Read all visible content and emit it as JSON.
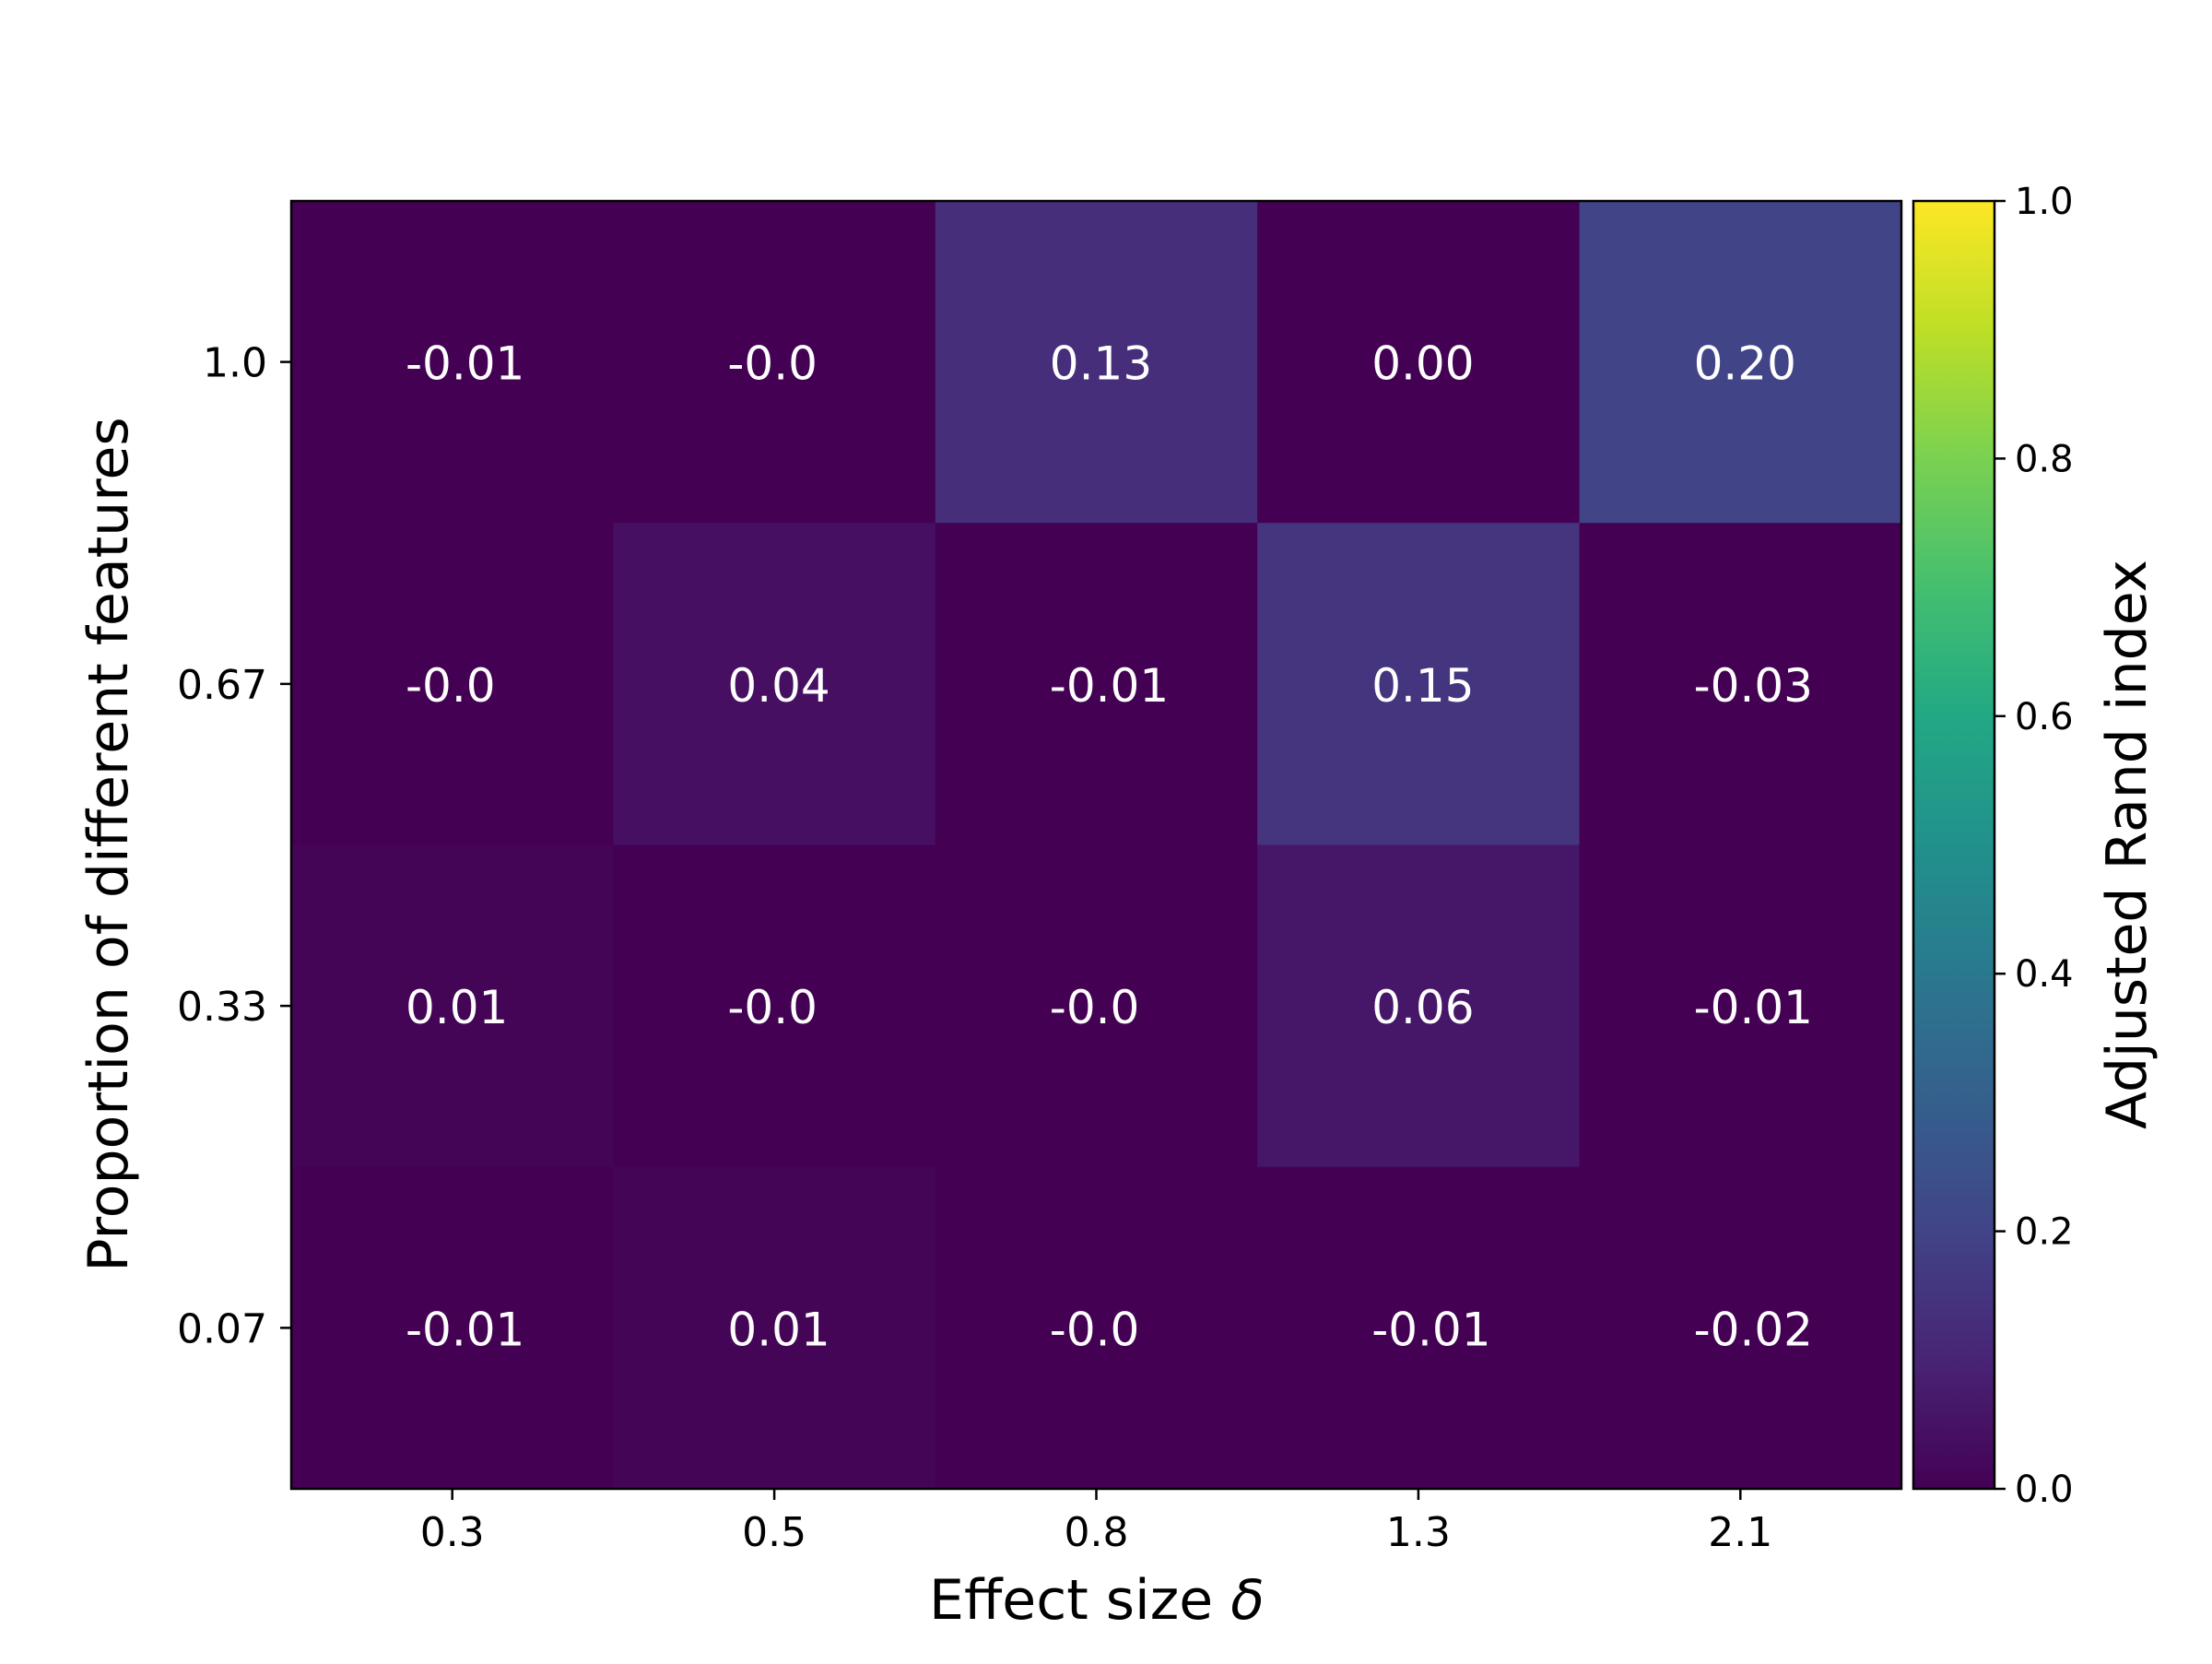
{
  "chart_data": {
    "type": "heatmap",
    "title": "",
    "xlabel": "Effect size",
    "xlabel_symbol": "δ",
    "ylabel": "Proportion of different features",
    "x_categories": [
      "0.3",
      "0.5",
      "0.8",
      "1.3",
      "2.1"
    ],
    "y_categories": [
      "1.0",
      "0.67",
      "0.33",
      "0.07"
    ],
    "cells": [
      [
        {
          "label": "-0.01",
          "value": -0.01
        },
        {
          "label": "-0.0",
          "value": -0.001
        },
        {
          "label": "0.13",
          "value": 0.13
        },
        {
          "label": "0.00",
          "value": 0.0
        },
        {
          "label": "0.20",
          "value": 0.2
        }
      ],
      [
        {
          "label": "-0.0",
          "value": -0.001
        },
        {
          "label": "0.04",
          "value": 0.04
        },
        {
          "label": "-0.01",
          "value": -0.01
        },
        {
          "label": "0.15",
          "value": 0.15
        },
        {
          "label": "-0.03",
          "value": -0.03
        }
      ],
      [
        {
          "label": "0.01",
          "value": 0.01
        },
        {
          "label": "-0.0",
          "value": -0.001
        },
        {
          "label": "-0.0",
          "value": -0.001
        },
        {
          "label": "0.06",
          "value": 0.06
        },
        {
          "label": "-0.01",
          "value": -0.01
        }
      ],
      [
        {
          "label": "-0.01",
          "value": -0.01
        },
        {
          "label": "0.01",
          "value": 0.01
        },
        {
          "label": "-0.0",
          "value": -0.001
        },
        {
          "label": "-0.01",
          "value": -0.01
        },
        {
          "label": "-0.02",
          "value": -0.02
        }
      ]
    ],
    "colorbar": {
      "label": "Adjusted Rand index",
      "range": [
        0.0,
        1.0
      ],
      "ticks": [
        "0.0",
        "0.2",
        "0.4",
        "0.6",
        "0.8",
        "1.0"
      ],
      "colormap": "viridis"
    },
    "cell_text_color": "#ffffff",
    "grid": false
  }
}
